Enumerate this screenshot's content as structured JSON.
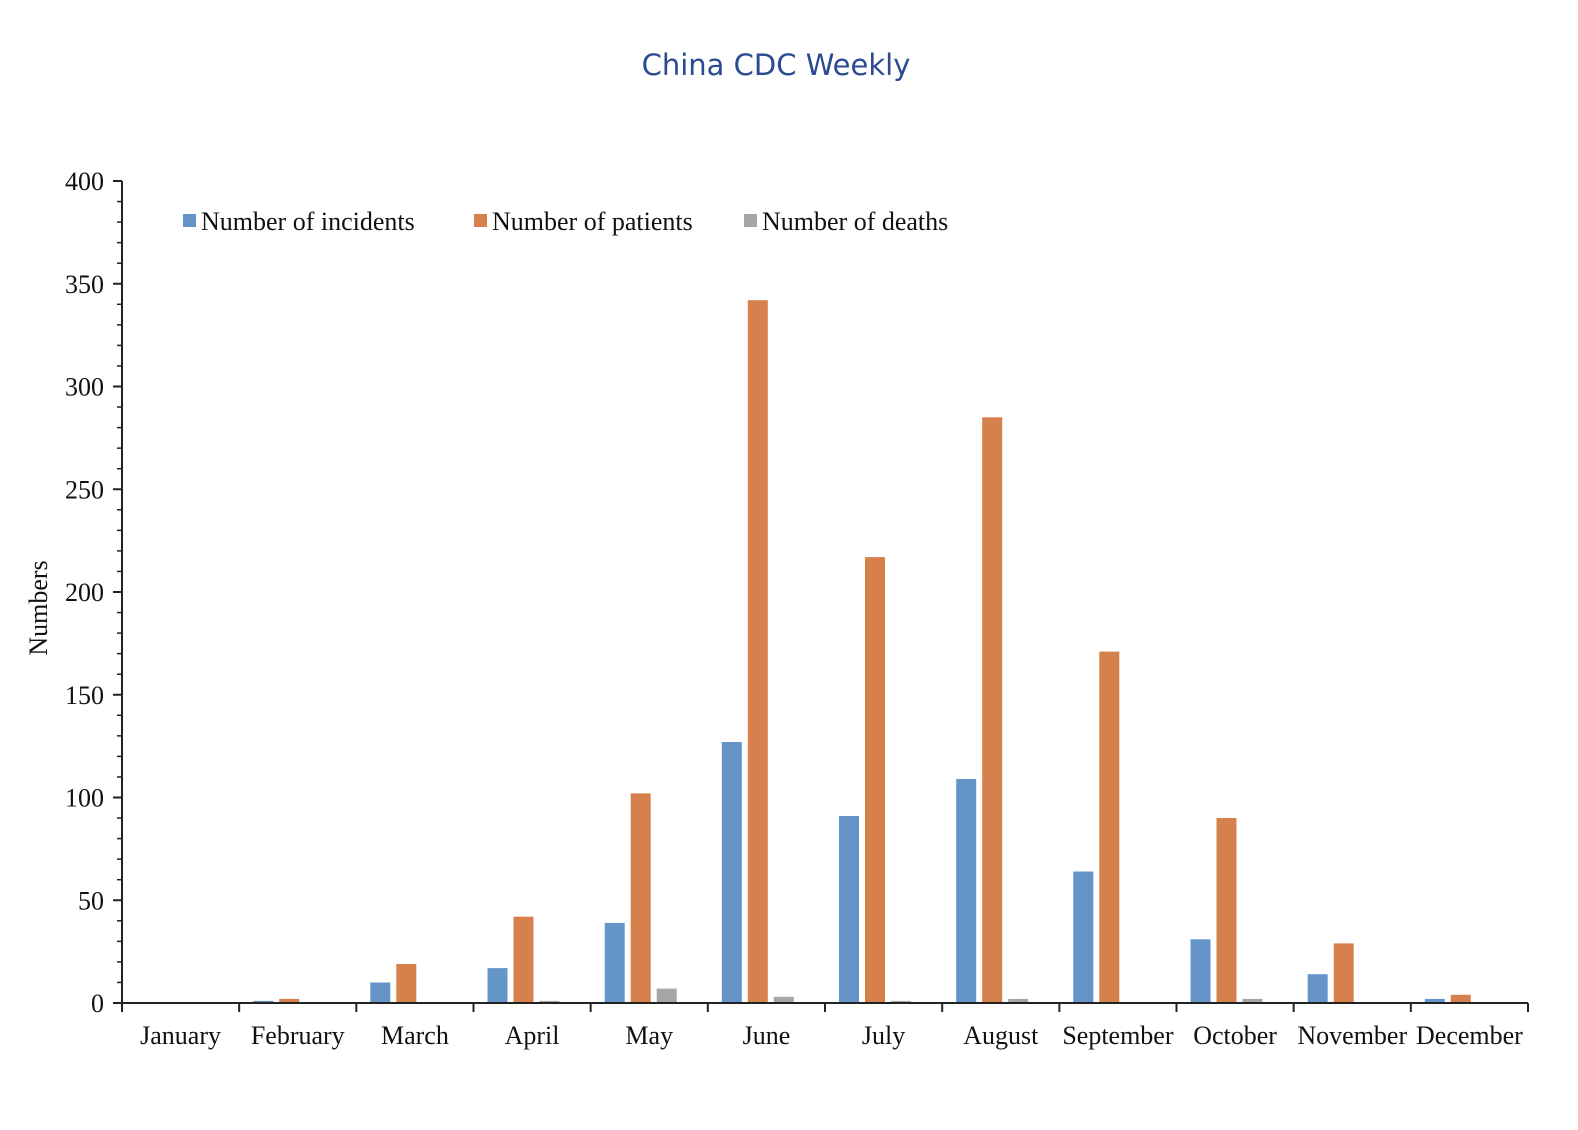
{
  "header": {
    "journal": "China CDC Weekly"
  },
  "chart_data": {
    "type": "bar",
    "title": "",
    "xlabel": "",
    "ylabel": "Numbers",
    "ylim": [
      0,
      400
    ],
    "y_ticks": [
      0,
      50,
      100,
      150,
      200,
      250,
      300,
      350,
      400
    ],
    "y_tick_labels": [
      "0",
      "50",
      "100",
      "150",
      "200",
      "250",
      "300",
      "350",
      "400"
    ],
    "grid": false,
    "legend_position": "top-left",
    "categories": [
      "January",
      "February",
      "March",
      "April",
      "May",
      "June",
      "July",
      "August",
      "September",
      "October",
      "November",
      "December"
    ],
    "series": [
      {
        "name": "Number of  incidents",
        "color": "#6494c8",
        "values": [
          0,
          1,
          10,
          17,
          39,
          127,
          91,
          109,
          64,
          31,
          14,
          2
        ]
      },
      {
        "name": "Number of patients",
        "color": "#d6804c",
        "values": [
          0,
          2,
          19,
          42,
          102,
          342,
          217,
          285,
          171,
          90,
          29,
          4
        ]
      },
      {
        "name": "Number of deaths",
        "color": "#a6a6a6",
        "values": [
          0,
          0,
          0,
          1,
          7,
          3,
          1,
          2,
          0,
          2,
          0,
          0
        ]
      }
    ]
  }
}
